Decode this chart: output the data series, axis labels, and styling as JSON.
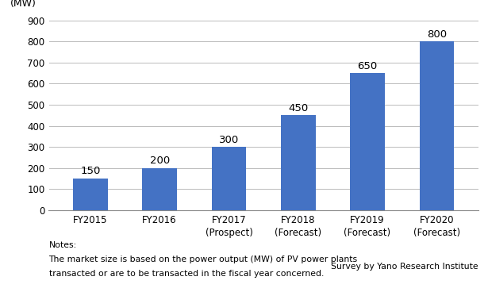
{
  "categories": [
    "FY2015",
    "FY2016",
    "FY2017\n(Prospect)",
    "FY2018\n(Forecast)",
    "FY2019\n(Forecast)",
    "FY2020\n(Forecast)"
  ],
  "values": [
    150,
    200,
    300,
    450,
    650,
    800
  ],
  "bar_color": "#4472C4",
  "ylabel": "(MW)",
  "ylim": [
    0,
    900
  ],
  "yticks": [
    0,
    100,
    200,
    300,
    400,
    500,
    600,
    700,
    800,
    900
  ],
  "bar_width": 0.5,
  "value_labels": [
    "150",
    "200",
    "300",
    "450",
    "650",
    "800"
  ],
  "note_line1": "Notes:",
  "note_line2": "The market size is based on the power output (MW) of PV power plants",
  "note_line3": "transacted or are to be transacted in the fiscal year concerned.",
  "credit": "Survey by Yano Research Institute",
  "background_color": "#ffffff",
  "grid_color": "#bbbbbb",
  "label_fontsize": 8.5,
  "tick_fontsize": 8.5,
  "value_fontsize": 9.5,
  "note_fontsize": 7.8,
  "ylabel_fontsize": 9
}
